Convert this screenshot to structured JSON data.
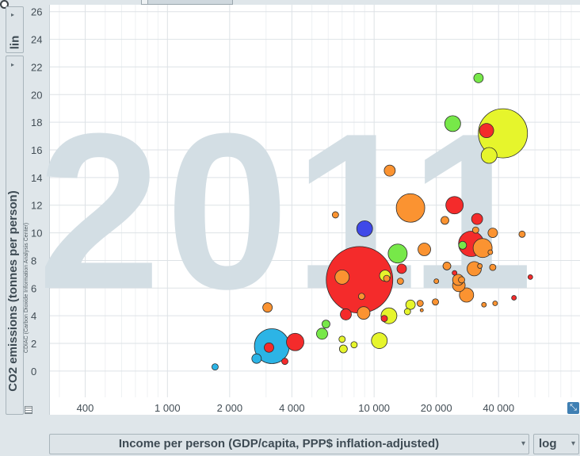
{
  "chart_data": {
    "type": "scatter",
    "watermark_year": "2011",
    "xlabel": "Income per person (GDP/capita, PPP$ inflation-adjusted)",
    "ylabel": "CO2 emissions (tonnes per person)",
    "source_note": "CDIAC (Carbon Dioxide Information Analysis Center)",
    "x_scale": "log",
    "y_scale": "lin",
    "xlim": [
      270,
      100000
    ],
    "ylim": [
      -1.9,
      26.5
    ],
    "x_ticks": [
      {
        "value": 400,
        "label": "400"
      },
      {
        "value": 1000,
        "label": "1 000"
      },
      {
        "value": 2000,
        "label": "2 000"
      },
      {
        "value": 4000,
        "label": "4 000"
      },
      {
        "value": 10000,
        "label": "10 000"
      },
      {
        "value": 20000,
        "label": "20 000"
      },
      {
        "value": 40000,
        "label": "40 000"
      }
    ],
    "x_minor": [
      300,
      500,
      600,
      700,
      800,
      900,
      3000,
      5000,
      6000,
      7000,
      8000,
      9000,
      30000,
      50000,
      60000,
      70000,
      80000,
      90000
    ],
    "y_ticks": [
      0,
      2,
      4,
      6,
      8,
      10,
      12,
      14,
      16,
      18,
      20,
      22,
      24,
      26
    ],
    "grid": true,
    "colors": {
      "red": "#f42b2b",
      "orange": "#fb9331",
      "yellow": "#e6f52c",
      "green": "#77e849",
      "blue": "#3f49e8",
      "cyan": "#2cb4e6",
      "watermark": "#d3dee4"
    },
    "points": [
      {
        "x": 1700,
        "y": 0.3,
        "r": 4,
        "color": "cyan"
      },
      {
        "x": 2700,
        "y": 0.9,
        "r": 6,
        "color": "cyan"
      },
      {
        "x": 3200,
        "y": 1.8,
        "r": 22,
        "color": "cyan"
      },
      {
        "x": 3100,
        "y": 1.7,
        "r": 6,
        "color": "red"
      },
      {
        "x": 3700,
        "y": 0.7,
        "r": 4,
        "color": "red"
      },
      {
        "x": 4150,
        "y": 2.1,
        "r": 11,
        "color": "red"
      },
      {
        "x": 3050,
        "y": 4.6,
        "r": 6,
        "color": "orange"
      },
      {
        "x": 5600,
        "y": 2.7,
        "r": 7,
        "color": "green"
      },
      {
        "x": 5850,
        "y": 3.4,
        "r": 5,
        "color": "green"
      },
      {
        "x": 7000,
        "y": 2.3,
        "r": 4,
        "color": "yellow"
      },
      {
        "x": 7100,
        "y": 1.6,
        "r": 5,
        "color": "yellow"
      },
      {
        "x": 8000,
        "y": 1.9,
        "r": 4,
        "color": "yellow"
      },
      {
        "x": 6500,
        "y": 11.3,
        "r": 4,
        "color": "orange"
      },
      {
        "x": 7300,
        "y": 4.1,
        "r": 7,
        "color": "red"
      },
      {
        "x": 7000,
        "y": 6.8,
        "r": 9,
        "color": "orange"
      },
      {
        "x": 8500,
        "y": 6.6,
        "r": 42,
        "color": "red"
      },
      {
        "x": 8900,
        "y": 4.2,
        "r": 8,
        "color": "orange"
      },
      {
        "x": 9000,
        "y": 10.3,
        "r": 10,
        "color": "blue"
      },
      {
        "x": 8700,
        "y": 5.4,
        "r": 4,
        "color": "orange"
      },
      {
        "x": 10600,
        "y": 2.2,
        "r": 10,
        "color": "yellow"
      },
      {
        "x": 11300,
        "y": 6.9,
        "r": 7,
        "color": "yellow"
      },
      {
        "x": 11500,
        "y": 6.7,
        "r": 4,
        "color": "orange"
      },
      {
        "x": 11200,
        "y": 3.8,
        "r": 4,
        "color": "red"
      },
      {
        "x": 11800,
        "y": 4.0,
        "r": 10,
        "color": "yellow"
      },
      {
        "x": 11900,
        "y": 14.5,
        "r": 7,
        "color": "orange"
      },
      {
        "x": 13000,
        "y": 8.5,
        "r": 12,
        "color": "green"
      },
      {
        "x": 13600,
        "y": 7.4,
        "r": 6,
        "color": "red"
      },
      {
        "x": 13400,
        "y": 6.5,
        "r": 4,
        "color": "orange"
      },
      {
        "x": 14500,
        "y": 4.3,
        "r": 4,
        "color": "yellow"
      },
      {
        "x": 15000,
        "y": 4.8,
        "r": 6,
        "color": "yellow"
      },
      {
        "x": 15000,
        "y": 11.8,
        "r": 18,
        "color": "orange"
      },
      {
        "x": 16700,
        "y": 4.9,
        "r": 4,
        "color": "orange"
      },
      {
        "x": 17000,
        "y": 4.4,
        "r": 2,
        "color": "orange"
      },
      {
        "x": 17500,
        "y": 8.8,
        "r": 8,
        "color": "orange"
      },
      {
        "x": 19800,
        "y": 5.0,
        "r": 4,
        "color": "orange"
      },
      {
        "x": 20000,
        "y": 6.5,
        "r": 3,
        "color": "orange"
      },
      {
        "x": 22000,
        "y": 10.9,
        "r": 5,
        "color": "orange"
      },
      {
        "x": 22500,
        "y": 7.6,
        "r": 5,
        "color": "orange"
      },
      {
        "x": 24500,
        "y": 12.0,
        "r": 11,
        "color": "red"
      },
      {
        "x": 24000,
        "y": 17.9,
        "r": 10,
        "color": "green"
      },
      {
        "x": 24500,
        "y": 7.1,
        "r": 3,
        "color": "red"
      },
      {
        "x": 25500,
        "y": 6.6,
        "r": 7,
        "color": "orange"
      },
      {
        "x": 25700,
        "y": 6.2,
        "r": 8,
        "color": "orange"
      },
      {
        "x": 26500,
        "y": 6.6,
        "r": 4,
        "color": "orange"
      },
      {
        "x": 26800,
        "y": 9.1,
        "r": 5,
        "color": "green"
      },
      {
        "x": 28000,
        "y": 5.5,
        "r": 9,
        "color": "orange"
      },
      {
        "x": 29500,
        "y": 9.2,
        "r": 16,
        "color": "red"
      },
      {
        "x": 30500,
        "y": 7.4,
        "r": 9,
        "color": "orange"
      },
      {
        "x": 31000,
        "y": 10.2,
        "r": 4,
        "color": "orange"
      },
      {
        "x": 31500,
        "y": 11.0,
        "r": 7,
        "color": "red"
      },
      {
        "x": 32000,
        "y": 21.2,
        "r": 6,
        "color": "green"
      },
      {
        "x": 32500,
        "y": 7.6,
        "r": 3,
        "color": "orange"
      },
      {
        "x": 33500,
        "y": 8.9,
        "r": 12,
        "color": "orange"
      },
      {
        "x": 34000,
        "y": 4.8,
        "r": 3,
        "color": "orange"
      },
      {
        "x": 35000,
        "y": 17.4,
        "r": 9,
        "color": "red"
      },
      {
        "x": 36000,
        "y": 15.6,
        "r": 10,
        "color": "yellow"
      },
      {
        "x": 36500,
        "y": 8.6,
        "r": 3,
        "color": "orange"
      },
      {
        "x": 37500,
        "y": 10.0,
        "r": 6,
        "color": "orange"
      },
      {
        "x": 37500,
        "y": 7.5,
        "r": 4,
        "color": "orange"
      },
      {
        "x": 38500,
        "y": 4.9,
        "r": 3,
        "color": "orange"
      },
      {
        "x": 42000,
        "y": 17.2,
        "r": 31,
        "color": "yellow"
      },
      {
        "x": 47500,
        "y": 5.3,
        "r": 3,
        "color": "red"
      },
      {
        "x": 52000,
        "y": 9.9,
        "r": 4,
        "color": "orange"
      },
      {
        "x": 57000,
        "y": 6.8,
        "r": 3,
        "color": "red"
      }
    ]
  },
  "controls": {
    "y_scale": "lin",
    "x_scale": "log"
  },
  "icons": {
    "side_arrow": "▸",
    "dropdown": "▾",
    "expand": "⤡"
  }
}
